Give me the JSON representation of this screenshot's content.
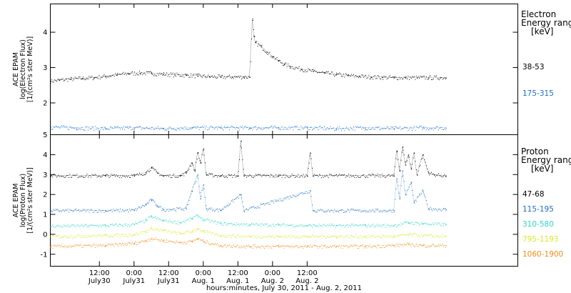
{
  "chart_data": [
    {
      "type": "scatter",
      "panel": "electron",
      "ylabel": [
        "ACE EPAM",
        "log(Electron Flux)",
        "[1/(cm²s ster MeV)]"
      ],
      "ylim": [
        1.1,
        4.8
      ],
      "yticks": [
        2,
        3,
        4
      ],
      "legend_title": [
        "Electron",
        "Energy ranges",
        "[keV]"
      ],
      "series": [
        {
          "name": "38-53",
          "color": "#000000",
          "points": [
            [
              -29,
              2.62
            ],
            [
              -26,
              2.65
            ],
            [
              -22,
              2.68
            ],
            [
              -18,
              2.7
            ],
            [
              -14,
              2.72
            ],
            [
              -10,
              2.76
            ],
            [
              -6,
              2.8
            ],
            [
              -2,
              2.84
            ],
            [
              2,
              2.85
            ],
            [
              6,
              2.84
            ],
            [
              10,
              2.82
            ],
            [
              14,
              2.8
            ],
            [
              18,
              2.79
            ],
            [
              22,
              2.77
            ],
            [
              26,
              2.75
            ],
            [
              30,
              2.74
            ],
            [
              34,
              2.74
            ],
            [
              38,
              2.74
            ],
            [
              40,
              2.74
            ],
            [
              41,
              4.35
            ],
            [
              41.5,
              3.9
            ],
            [
              42,
              3.72
            ],
            [
              44,
              3.6
            ],
            [
              46,
              3.45
            ],
            [
              48,
              3.32
            ],
            [
              50,
              3.2
            ],
            [
              52,
              3.1
            ],
            [
              54,
              3.04
            ],
            [
              58,
              2.96
            ],
            [
              62,
              2.9
            ],
            [
              66,
              2.85
            ],
            [
              70,
              2.81
            ],
            [
              74,
              2.78
            ],
            [
              78,
              2.76
            ],
            [
              82,
              2.74
            ],
            [
              86,
              2.73
            ],
            [
              90,
              2.72
            ],
            [
              94,
              2.72
            ],
            [
              98,
              2.72
            ],
            [
              102,
              2.72
            ],
            [
              106,
              2.72
            ],
            [
              108,
              2.72
            ]
          ]
        },
        {
          "name": "175-315",
          "color": "#1f6fc4",
          "points": [
            [
              -29,
              1.32
            ],
            [
              -20,
              1.3
            ],
            [
              -10,
              1.28
            ],
            [
              0,
              1.3
            ],
            [
              10,
              1.28
            ],
            [
              20,
              1.3
            ],
            [
              30,
              1.3
            ],
            [
              40,
              1.3
            ],
            [
              50,
              1.3
            ],
            [
              60,
              1.3
            ],
            [
              70,
              1.28
            ],
            [
              80,
              1.3
            ],
            [
              90,
              1.28
            ],
            [
              100,
              1.3
            ],
            [
              108,
              1.3
            ]
          ]
        }
      ]
    },
    {
      "type": "scatter",
      "panel": "proton",
      "ylabel": [
        "ACE EPAM",
        "log(Proton Flux)",
        "[1/(cm²s ster MeV)]"
      ],
      "ylim": [
        -1.6,
        5.0
      ],
      "yticks": [
        -1,
        0,
        1,
        2,
        3,
        4,
        5
      ],
      "legend_title": [
        "Proton",
        "Energy ranges",
        "[keV]"
      ],
      "series": [
        {
          "name": "47-68",
          "color": "#000000",
          "points": [
            [
              -29,
              2.95
            ],
            [
              -10,
              2.95
            ],
            [
              0,
              2.95
            ],
            [
              4,
              3.1
            ],
            [
              6,
              3.35
            ],
            [
              8,
              3.1
            ],
            [
              10,
              2.95
            ],
            [
              16,
              2.95
            ],
            [
              18,
              3.1
            ],
            [
              20,
              3.6
            ],
            [
              21,
              3.2
            ],
            [
              22,
              4.1
            ],
            [
              23,
              3.6
            ],
            [
              24,
              4.3
            ],
            [
              25,
              3.0
            ],
            [
              30,
              2.95
            ],
            [
              36,
              2.95
            ],
            [
              37,
              4.7
            ],
            [
              38,
              2.95
            ],
            [
              50,
              2.95
            ],
            [
              60,
              2.95
            ],
            [
              61,
              4.1
            ],
            [
              62,
              2.95
            ],
            [
              90,
              2.95
            ],
            [
              91,
              4.2
            ],
            [
              92,
              3.2
            ],
            [
              93,
              4.4
            ],
            [
              94,
              3.5
            ],
            [
              95,
              4.0
            ],
            [
              96,
              3.3
            ],
            [
              97,
              4.1
            ],
            [
              98,
              3.0
            ],
            [
              100,
              4.0
            ],
            [
              102,
              3.1
            ],
            [
              104,
              3.0
            ],
            [
              108,
              2.95
            ]
          ]
        },
        {
          "name": "115-195",
          "color": "#1f6fc4",
          "points": [
            [
              -29,
              1.2
            ],
            [
              -10,
              1.2
            ],
            [
              0,
              1.22
            ],
            [
              4,
              1.5
            ],
            [
              6,
              1.75
            ],
            [
              8,
              1.45
            ],
            [
              10,
              1.25
            ],
            [
              18,
              1.3
            ],
            [
              20,
              2.2
            ],
            [
              22,
              3.0
            ],
            [
              23,
              1.8
            ],
            [
              24,
              2.5
            ],
            [
              25,
              1.3
            ],
            [
              30,
              1.22
            ],
            [
              37,
              2.0
            ],
            [
              38,
              1.2
            ],
            [
              61,
              2.2
            ],
            [
              62,
              1.2
            ],
            [
              90,
              1.2
            ],
            [
              91,
              2.8
            ],
            [
              92,
              1.8
            ],
            [
              93,
              3.2
            ],
            [
              94,
              2.0
            ],
            [
              96,
              2.6
            ],
            [
              97,
              1.6
            ],
            [
              100,
              2.2
            ],
            [
              102,
              1.3
            ],
            [
              108,
              1.25
            ]
          ]
        },
        {
          "name": "310-580",
          "color": "#2fd4c8",
          "points": [
            [
              -29,
              0.42
            ],
            [
              -10,
              0.45
            ],
            [
              0,
              0.5
            ],
            [
              4,
              0.7
            ],
            [
              6,
              0.9
            ],
            [
              10,
              0.7
            ],
            [
              16,
              0.6
            ],
            [
              20,
              0.8
            ],
            [
              22,
              0.95
            ],
            [
              24,
              0.75
            ],
            [
              30,
              0.55
            ],
            [
              40,
              0.5
            ],
            [
              50,
              0.48
            ],
            [
              60,
              0.45
            ],
            [
              70,
              0.45
            ],
            [
              80,
              0.45
            ],
            [
              90,
              0.45
            ],
            [
              95,
              0.6
            ],
            [
              100,
              0.55
            ],
            [
              108,
              0.5
            ]
          ]
        },
        {
          "name": "795-1193",
          "color": "#d8e82a",
          "points": [
            [
              -29,
              -0.1
            ],
            [
              -10,
              -0.05
            ],
            [
              0,
              0.0
            ],
            [
              4,
              0.15
            ],
            [
              6,
              0.3
            ],
            [
              10,
              0.2
            ],
            [
              16,
              0.05
            ],
            [
              20,
              0.15
            ],
            [
              22,
              0.3
            ],
            [
              24,
              0.15
            ],
            [
              30,
              -0.05
            ],
            [
              40,
              -0.1
            ],
            [
              50,
              -0.1
            ],
            [
              60,
              -0.1
            ],
            [
              70,
              -0.1
            ],
            [
              80,
              -0.1
            ],
            [
              90,
              -0.1
            ],
            [
              95,
              0.0
            ],
            [
              100,
              -0.05
            ],
            [
              108,
              -0.1
            ]
          ]
        },
        {
          "name": "1060-1900",
          "color": "#f08c1c",
          "points": [
            [
              -29,
              -0.6
            ],
            [
              -10,
              -0.55
            ],
            [
              0,
              -0.45
            ],
            [
              4,
              -0.3
            ],
            [
              6,
              -0.2
            ],
            [
              10,
              -0.3
            ],
            [
              16,
              -0.4
            ],
            [
              20,
              -0.35
            ],
            [
              22,
              -0.2
            ],
            [
              24,
              -0.35
            ],
            [
              30,
              -0.55
            ],
            [
              40,
              -0.6
            ],
            [
              50,
              -0.6
            ],
            [
              60,
              -0.6
            ],
            [
              70,
              -0.6
            ],
            [
              80,
              -0.6
            ],
            [
              90,
              -0.55
            ],
            [
              95,
              -0.5
            ],
            [
              100,
              -0.55
            ],
            [
              108,
              -0.55
            ]
          ]
        }
      ]
    }
  ],
  "x_axis": {
    "xlim": [
      -29,
      133
    ],
    "xlabel": "hours:minutes, July 30, 2011 - Aug. 2, 2011",
    "ticks": [
      {
        "x": -12,
        "time": "12:00",
        "date": "July30"
      },
      {
        "x": 0,
        "time": "0:00",
        "date": "July31"
      },
      {
        "x": 12,
        "time": "12:00",
        "date": "July31"
      },
      {
        "x": 24,
        "time": "0:00",
        "date": "Aug. 1"
      },
      {
        "x": 36,
        "time": "12:00",
        "date": "Aug. 1"
      },
      {
        "x": 48,
        "time": "0:00",
        "date": "Aug. 2"
      },
      {
        "x": 60,
        "time": "12:00",
        "date": "Aug. 2"
      }
    ]
  }
}
